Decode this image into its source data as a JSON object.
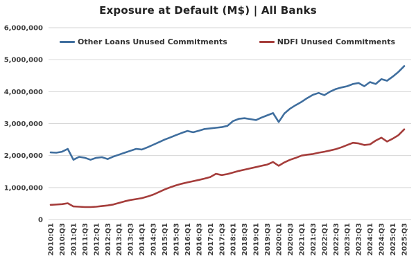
{
  "chart_data": {
    "type": "line",
    "title": "Exposure at Default (M$) | All Banks",
    "xlabel": "",
    "ylabel": "",
    "ylim": [
      0,
      6000000
    ],
    "y_ticks": [
      0,
      1000000,
      2000000,
      3000000,
      4000000,
      5000000,
      6000000
    ],
    "y_tick_labels": [
      "0",
      "1,000,000",
      "2,000,000",
      "3,000,000",
      "4,000,000",
      "5,000,000",
      "6,000,000"
    ],
    "grid": "horizontal",
    "legend_position": "top-center",
    "gridline_color": "#d6d6d6",
    "axis_text_color": "#3d3d3d",
    "x": [
      "2010:Q1",
      "2010:Q2",
      "2010:Q3",
      "2010:Q4",
      "2011:Q1",
      "2011:Q2",
      "2011:Q3",
      "2011:Q4",
      "2012:Q1",
      "2012:Q2",
      "2012:Q3",
      "2012:Q4",
      "2013:Q1",
      "2013:Q2",
      "2013:Q3",
      "2013:Q4",
      "2014:Q1",
      "2014:Q2",
      "2014:Q3",
      "2014:Q4",
      "2015:Q1",
      "2015:Q2",
      "2015:Q3",
      "2015:Q4",
      "2016:Q1",
      "2016:Q2",
      "2016:Q3",
      "2016:Q4",
      "2017:Q1",
      "2017:Q2",
      "2017:Q3",
      "2017:Q4",
      "2018:Q1",
      "2018:Q2",
      "2018:Q3",
      "2018:Q4",
      "2019:Q1",
      "2019:Q2",
      "2019:Q3",
      "2019:Q4",
      "2020:Q1",
      "2020:Q2",
      "2020:Q3",
      "2020:Q4",
      "2021:Q1",
      "2021:Q2",
      "2021:Q3",
      "2021:Q4",
      "2022:Q1",
      "2022:Q2",
      "2022:Q3",
      "2022:Q4",
      "2023:Q1",
      "2023:Q2",
      "2023:Q3",
      "2023:Q4",
      "2024:Q1",
      "2024:Q2",
      "2024:Q3",
      "2024:Q4",
      "2025:Q1",
      "2025:Q2",
      "2025:Q3"
    ],
    "x_tick_labels": [
      "2010:Q1",
      "2010:Q3",
      "2011:Q1",
      "2011:Q3",
      "2012:Q1",
      "2012:Q3",
      "2013:Q1",
      "2013:Q3",
      "2014:Q1",
      "2014:Q3",
      "2015:Q1",
      "2015:Q3",
      "2016:Q1",
      "2016:Q3",
      "2017:Q1",
      "2017:Q3",
      "2018:Q1",
      "2018:Q3",
      "2019:Q1",
      "2019:Q3",
      "2020:Q1",
      "2020:Q3",
      "2021:Q1",
      "2021:Q3",
      "2022:Q1",
      "2022:Q3",
      "2023:Q1",
      "2023:Q3",
      "2024:Q1",
      "2024:Q3",
      "2025:Q1",
      "2025:Q3"
    ],
    "x_tick_every": 2,
    "series": [
      {
        "name": "Other Loans Unused Commitments",
        "color": "#3f6e9e",
        "values": [
          2100000,
          2090000,
          2120000,
          2210000,
          1870000,
          1960000,
          1930000,
          1870000,
          1930000,
          1950000,
          1890000,
          1970000,
          2030000,
          2090000,
          2150000,
          2210000,
          2190000,
          2260000,
          2340000,
          2420000,
          2500000,
          2570000,
          2640000,
          2710000,
          2770000,
          2730000,
          2780000,
          2830000,
          2850000,
          2870000,
          2890000,
          2930000,
          3080000,
          3150000,
          3170000,
          3140000,
          3110000,
          3190000,
          3260000,
          3330000,
          3050000,
          3320000,
          3470000,
          3580000,
          3680000,
          3800000,
          3900000,
          3960000,
          3890000,
          4000000,
          4080000,
          4130000,
          4170000,
          4240000,
          4270000,
          4170000,
          4300000,
          4240000,
          4390000,
          4340000,
          4470000,
          4620000,
          4800000
        ]
      },
      {
        "name": "NDFI Unused Commitments",
        "color": "#a53d3b",
        "values": [
          460000,
          470000,
          480000,
          510000,
          410000,
          400000,
          390000,
          390000,
          400000,
          420000,
          440000,
          470000,
          520000,
          570000,
          610000,
          640000,
          670000,
          720000,
          780000,
          860000,
          940000,
          1010000,
          1070000,
          1120000,
          1160000,
          1200000,
          1240000,
          1280000,
          1330000,
          1430000,
          1390000,
          1420000,
          1470000,
          1520000,
          1560000,
          1600000,
          1640000,
          1680000,
          1720000,
          1800000,
          1680000,
          1790000,
          1870000,
          1930000,
          2000000,
          2030000,
          2050000,
          2090000,
          2120000,
          2160000,
          2200000,
          2260000,
          2330000,
          2400000,
          2380000,
          2330000,
          2350000,
          2470000,
          2560000,
          2440000,
          2530000,
          2640000,
          2820000
        ]
      }
    ]
  }
}
